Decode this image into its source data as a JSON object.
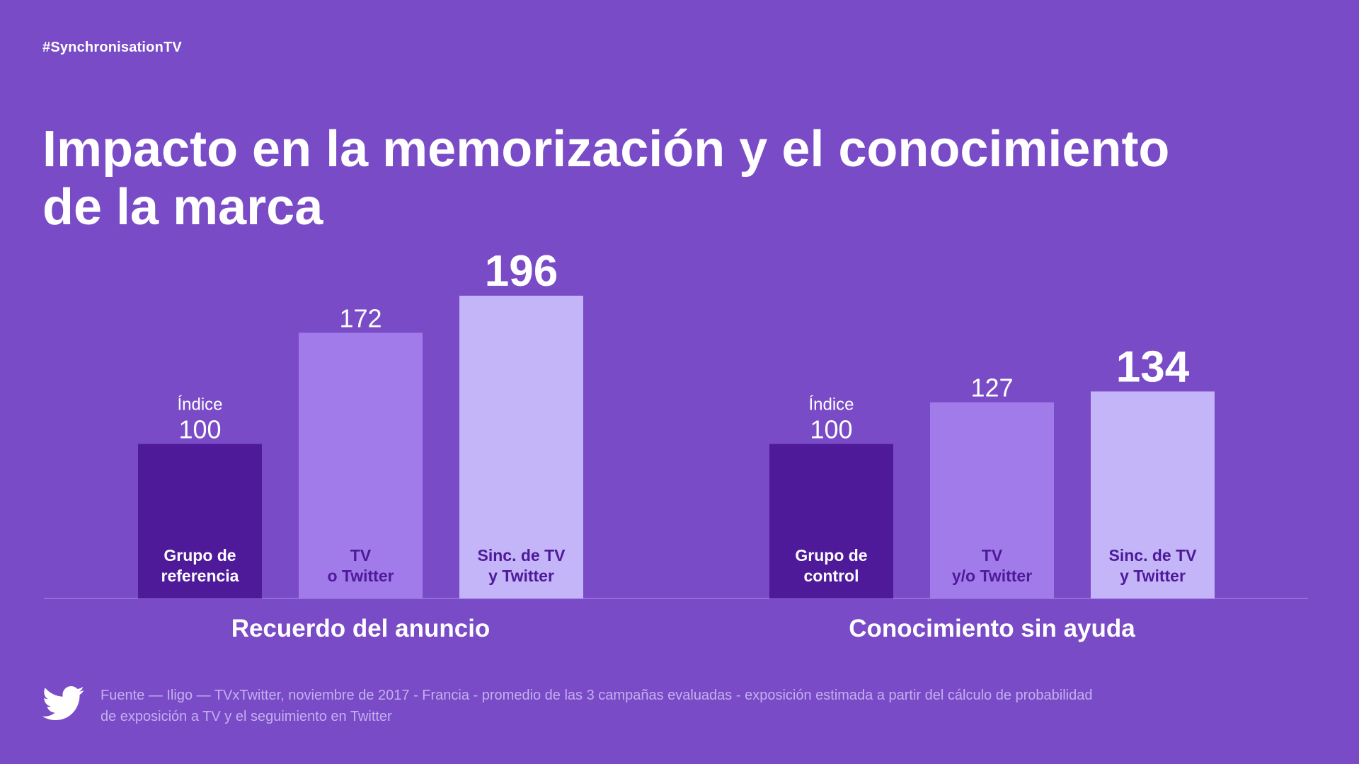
{
  "header": {
    "hashtag": "#SynchronisationTV",
    "title_line1": "Impacto en la memorización y el conocimiento",
    "title_line2": "de la marca"
  },
  "footer": {
    "logo_icon": "twitter-bird-icon",
    "source_line1": "Fuente — Iligo — TVxTwitter, noviembre de 2017 - Francia - promedio de las 3 campañas evaluadas - exposición estimada a partir del cálculo de probabilidad",
    "source_line2": "de exposición a TV y el seguimiento en Twitter"
  },
  "colors": {
    "background": "#7a4bc6",
    "bar_reference": "#4e1a9a",
    "bar_tv_or_twitter": "#a27bea",
    "bar_sync": "#c4b4f8",
    "label_dark": "#4e1a9a",
    "label_light": "#ffffff",
    "baseline": "#9b78e0"
  },
  "chart_data": {
    "type": "bar",
    "groups": [
      {
        "name": "Recuerdo del anuncio",
        "bars": [
          {
            "label_line1": "Grupo de",
            "label_line2": "referencia",
            "value": 100,
            "prefix": "Índice",
            "color_key": "bar_reference",
            "emphasis": false
          },
          {
            "label_line1": "TV",
            "label_line2": "o Twitter",
            "value": 172,
            "prefix": "",
            "color_key": "bar_tv_or_twitter",
            "emphasis": false
          },
          {
            "label_line1": "Sinc. de TV",
            "label_line2": "y Twitter",
            "value": 196,
            "prefix": "",
            "color_key": "bar_sync",
            "emphasis": true
          }
        ]
      },
      {
        "name": "Conocimiento sin ayuda",
        "bars": [
          {
            "label_line1": "Grupo de",
            "label_line2": "control",
            "value": 100,
            "prefix": "Índice",
            "color_key": "bar_reference",
            "emphasis": false
          },
          {
            "label_line1": "TV",
            "label_line2": "y/o Twitter",
            "value": 127,
            "prefix": "",
            "color_key": "bar_tv_or_twitter",
            "emphasis": false
          },
          {
            "label_line1": "Sinc. de TV",
            "label_line2": "y Twitter",
            "value": 134,
            "prefix": "",
            "color_key": "bar_sync",
            "emphasis": true
          }
        ]
      }
    ]
  }
}
